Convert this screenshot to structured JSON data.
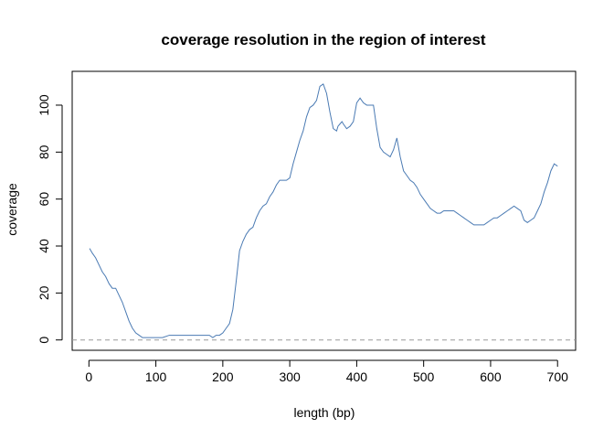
{
  "chart_data": {
    "type": "line",
    "title": "coverage resolution in the region of interest",
    "xlabel": "length (bp)",
    "ylabel": "coverage",
    "xlim": [
      -25,
      727
    ],
    "ylim": [
      -4.4,
      114.4
    ],
    "xticks": [
      0,
      100,
      200,
      300,
      400,
      500,
      600,
      700
    ],
    "yticks": [
      0,
      20,
      40,
      60,
      80,
      100
    ],
    "grid": false,
    "colors": {
      "line": "#4a7ab3",
      "reference": "#999999",
      "frame": "#000000"
    },
    "reference_line": {
      "y": 0,
      "style": "dashed"
    },
    "series": [
      {
        "x": [
          1,
          5,
          10,
          15,
          20,
          25,
          30,
          35,
          40,
          45,
          50,
          55,
          60,
          65,
          70,
          75,
          80,
          85,
          90,
          95,
          100,
          110,
          120,
          130,
          140,
          150,
          160,
          170,
          180,
          185,
          190,
          195,
          200,
          205,
          210,
          215,
          220,
          225,
          230,
          235,
          240,
          245,
          250,
          255,
          260,
          265,
          270,
          275,
          280,
          285,
          290,
          295,
          300,
          305,
          310,
          315,
          320,
          325,
          330,
          335,
          340,
          345,
          350,
          355,
          360,
          365,
          370,
          372,
          375,
          378,
          380,
          385,
          390,
          395,
          400,
          405,
          410,
          415,
          420,
          425,
          430,
          435,
          440,
          445,
          450,
          455,
          460,
          465,
          470,
          475,
          480,
          485,
          490,
          495,
          500,
          505,
          510,
          515,
          520,
          525,
          530,
          535,
          540,
          545,
          550,
          555,
          560,
          565,
          570,
          575,
          580,
          585,
          590,
          595,
          600,
          605,
          610,
          615,
          620,
          625,
          630,
          635,
          640,
          645,
          650,
          655,
          660,
          665,
          670,
          675,
          680,
          685,
          690,
          695,
          700
        ],
        "y": [
          39,
          37,
          35,
          32,
          29,
          27,
          24,
          22,
          22,
          19,
          16,
          12,
          8,
          5,
          3,
          2,
          1,
          1,
          1,
          1,
          1,
          1,
          2,
          2,
          2,
          2,
          2,
          2,
          2,
          1,
          2,
          2,
          3,
          5,
          7,
          13,
          25,
          38,
          42,
          45,
          47,
          48,
          52,
          55,
          57,
          58,
          61,
          63,
          66,
          68,
          68,
          68,
          69,
          75,
          80,
          85,
          89,
          95,
          99,
          100,
          102,
          108,
          109,
          105,
          97,
          90,
          89,
          91,
          92,
          93,
          92,
          90,
          91,
          93,
          101,
          103,
          101,
          100,
          100,
          100,
          90,
          82,
          80,
          79,
          78,
          81,
          86,
          78,
          72,
          70,
          68,
          67,
          65,
          62,
          60,
          58,
          56,
          55,
          54,
          54,
          55,
          55,
          55,
          55,
          54,
          53,
          52,
          51,
          50,
          49,
          49,
          49,
          49,
          50,
          51,
          52,
          52,
          53,
          54,
          55,
          56,
          57,
          56,
          55,
          51,
          50,
          51,
          52,
          55,
          58,
          63,
          67,
          72,
          75,
          74
        ]
      }
    ]
  }
}
